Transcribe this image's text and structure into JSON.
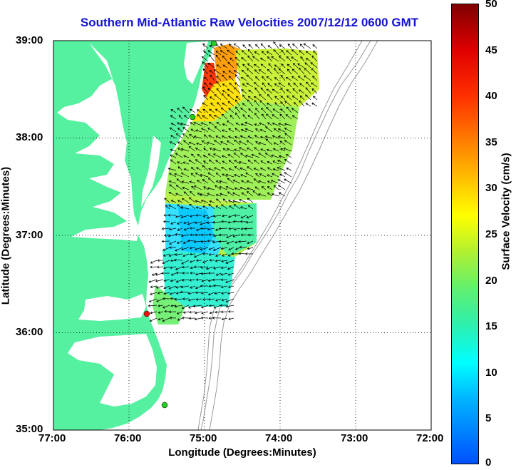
{
  "title": "Southern Mid-Atlantic Raw Velocities 2007/12/12 0600 GMT",
  "xaxis": {
    "label": "Longitude (Degrees:Minutes)",
    "ticks": [
      "77:00",
      "76:00",
      "75:00",
      "74:00",
      "73:00",
      "72:00"
    ]
  },
  "yaxis": {
    "label": "Latitude (Degrees:Minutes)",
    "ticks": [
      "39:00",
      "38:00",
      "37:00",
      "36:00",
      "35:00"
    ]
  },
  "colorbar": {
    "label": "Surface Velocity (cm/s)",
    "ticks": [
      "50",
      "45",
      "40",
      "35",
      "30",
      "25",
      "20",
      "15",
      "10",
      "5",
      "0"
    ],
    "range": [
      0,
      50
    ]
  },
  "colors": {
    "land": "#55f0a0",
    "water": "#ffffff",
    "title": "#1414d2",
    "arrows": "#000000",
    "stations_green": "#22cc22",
    "station_red": "#ee1111",
    "bathymetry": "#9a9a9a"
  },
  "map_extent": {
    "lon_min": -77,
    "lon_max": -72,
    "lat_min": 35,
    "lat_max": 39
  },
  "stations": [
    {
      "lon": -74.87,
      "lat": 39.0,
      "color": "green"
    },
    {
      "lon": -75.15,
      "lat": 38.2,
      "color": "green"
    },
    {
      "lon": -75.75,
      "lat": 36.17,
      "color": "red"
    },
    {
      "lon": -75.47,
      "lat": 35.25,
      "color": "green"
    }
  ]
}
